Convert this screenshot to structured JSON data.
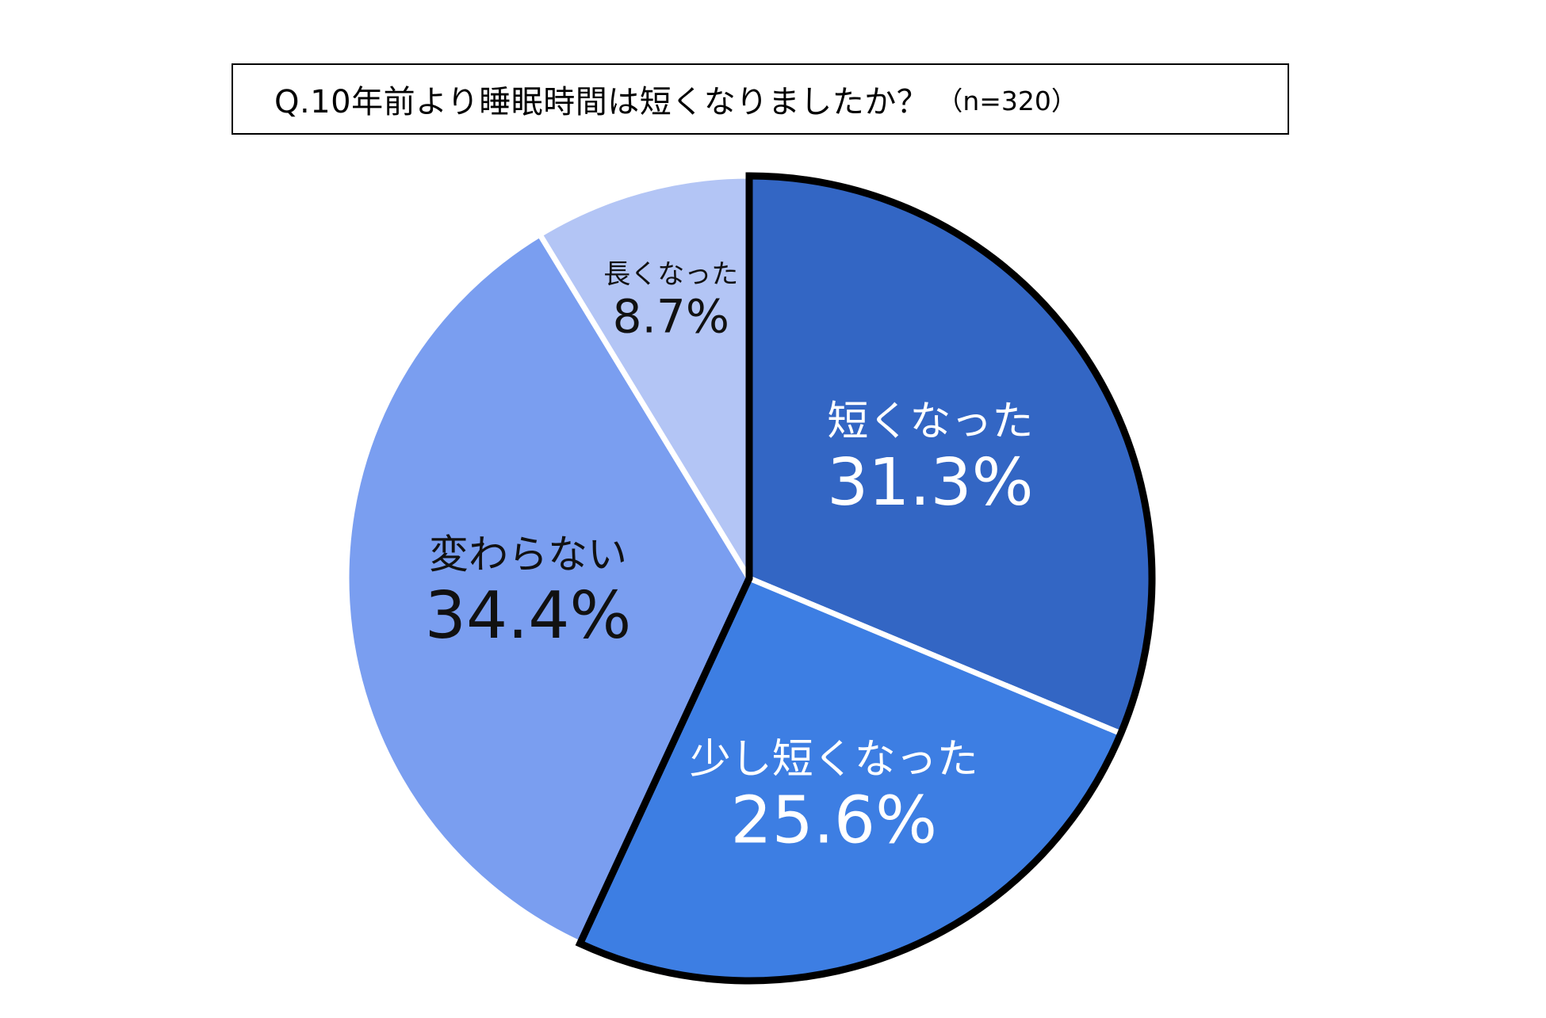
{
  "chart_data": {
    "type": "pie",
    "title": "Q.10年前より睡眠時間は短くなりましたか？",
    "subtitle": "（n=320）",
    "start": "12 o'clock",
    "direction": "clockwise",
    "slices": [
      {
        "label": "短くなった",
        "value": 31.3,
        "value_label": "31.3%",
        "color": "#3366c4",
        "text_color": "#ffffff",
        "outlined": true
      },
      {
        "label": "少し短くなった",
        "value": 25.6,
        "value_label": "25.6%",
        "color": "#3d7ee3",
        "text_color": "#ffffff",
        "outlined": true
      },
      {
        "label": "変わらない",
        "value": 34.4,
        "value_label": "34.4%",
        "color": "#7a9ef0",
        "text_color": "#111111",
        "outlined": false
      },
      {
        "label": "長くなった",
        "value": 8.7,
        "value_label": "8.7%",
        "color": "#b3c5f5",
        "text_color": "#111111",
        "outlined": false
      }
    ]
  }
}
